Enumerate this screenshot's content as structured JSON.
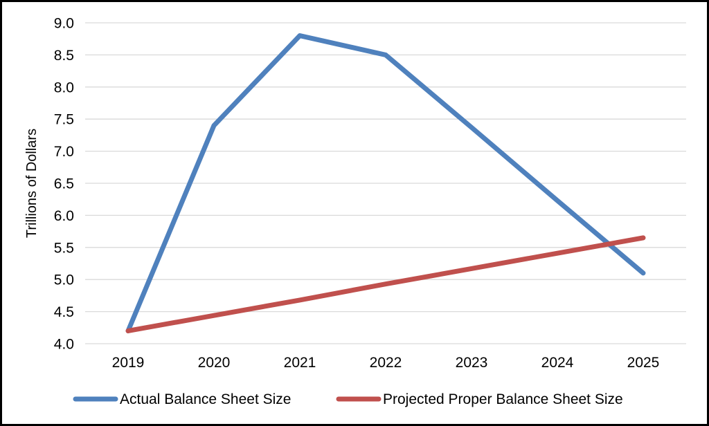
{
  "chart_data": {
    "type": "line",
    "title": "",
    "xlabel": "",
    "ylabel": "Trillions of Dollars",
    "categories": [
      "2019",
      "2020",
      "2021",
      "2022",
      "2023",
      "2024",
      "2025"
    ],
    "series": [
      {
        "name": "Actual Balance Sheet Size",
        "color": "#4F81BD",
        "values": [
          4.2,
          7.4,
          8.8,
          8.5,
          7.37,
          6.23,
          5.1
        ]
      },
      {
        "name": "Projected Proper Balance Sheet Size",
        "color": "#C0504D",
        "values": [
          4.2,
          4.44,
          4.68,
          4.93,
          5.17,
          5.41,
          5.65
        ]
      }
    ],
    "ylim": [
      4.0,
      9.0
    ],
    "ytick_step": 0.5,
    "ytick_labels": [
      "4.0",
      "4.5",
      "5.0",
      "5.5",
      "6.0",
      "6.5",
      "7.0",
      "7.5",
      "8.0",
      "8.5",
      "9.0"
    ],
    "grid": "horizontal",
    "gridline_color": "#D9D9D9",
    "legend_position": "bottom"
  }
}
